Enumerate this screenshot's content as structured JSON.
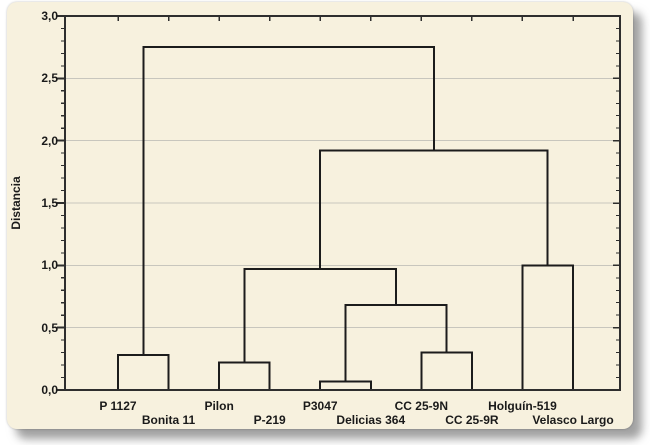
{
  "chart_data": {
    "type": "dendrogram",
    "title": "",
    "ylabel": "Distancia",
    "xlabel": "",
    "ylim": [
      0,
      3.0
    ],
    "y_major_step": 0.5,
    "y_minor_step": 0.1,
    "y_tick_labels": [
      "0,0",
      "0,5",
      "1,0",
      "1,5",
      "2,0",
      "2,5",
      "3,0"
    ],
    "grid": true,
    "legend": "none",
    "leaves": [
      "P 1127",
      "Bonita 11",
      "Pilon",
      "P-219",
      "P3047",
      "Delicias 364",
      "CC 25-9N",
      "CC 25-9R",
      "Holguín-519",
      "Velasco Largo"
    ],
    "merges": [
      {
        "id": "M1",
        "children": [
          "L0",
          "L1"
        ],
        "height": 0.28
      },
      {
        "id": "M2",
        "children": [
          "L2",
          "L3"
        ],
        "height": 0.22
      },
      {
        "id": "M3",
        "children": [
          "L4",
          "L5"
        ],
        "height": 0.07
      },
      {
        "id": "M4",
        "children": [
          "L6",
          "L7"
        ],
        "height": 0.3
      },
      {
        "id": "M5",
        "children": [
          "M3",
          "M4"
        ],
        "height": 0.68
      },
      {
        "id": "M6",
        "children": [
          "M2",
          "M5"
        ],
        "height": 0.97
      },
      {
        "id": "M7",
        "children": [
          "L8",
          "L9"
        ],
        "height": 1.0
      },
      {
        "id": "M8",
        "children": [
          "M6",
          "M7"
        ],
        "height": 1.92
      },
      {
        "id": "M9",
        "children": [
          "M1",
          "M8"
        ],
        "height": 2.75
      }
    ],
    "colors": {
      "page": "#ffffff",
      "card_background": "#f7f1de",
      "frame": "#2e2e2e",
      "link_line": "#1c1c1c",
      "gridline": "#c8c6bd",
      "text": "#1a1a1a"
    }
  }
}
